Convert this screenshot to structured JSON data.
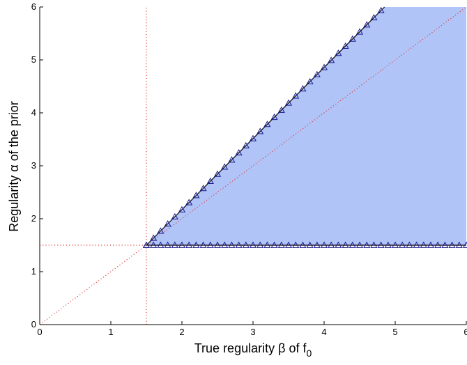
{
  "chart_data": {
    "type": "area",
    "title": "",
    "xlabel": {
      "before_sub": "True regularity β of f",
      "subscript": "0"
    },
    "ylabel": "Regularity α of the prior",
    "xlim": [
      0,
      6
    ],
    "ylim": [
      0,
      6
    ],
    "xticks": [
      "0",
      "1",
      "2",
      "3",
      "4",
      "5",
      "6"
    ],
    "yticks": [
      "0",
      "1",
      "2",
      "3",
      "4",
      "5",
      "6"
    ],
    "grid": false,
    "region": {
      "fill_color": "#b0c4f8",
      "lower_boundary": {
        "x": [
          1.5,
          6
        ],
        "y": [
          1.5,
          1.5
        ]
      },
      "upper_boundary": {
        "x": [
          1.5,
          4.85
        ],
        "y": [
          1.5,
          6
        ]
      }
    },
    "reference_lines": [
      {
        "kind": "diagonal",
        "x": [
          0,
          6
        ],
        "y": [
          0,
          6
        ],
        "style": "dotted",
        "color": "#e04040"
      },
      {
        "kind": "vertical",
        "x": 1.5,
        "style": "dotted",
        "color": "#e04040"
      },
      {
        "kind": "horizontal",
        "y": 1.5,
        "style": "dotted",
        "color": "#e04040"
      }
    ],
    "markers": {
      "shape": "triangle",
      "color": "#1a1a8c",
      "upper_boundary_x": [
        1.5,
        1.6,
        1.7,
        1.8,
        1.9,
        2.0,
        2.1,
        2.2,
        2.3,
        2.4,
        2.5,
        2.6,
        2.7,
        2.8,
        2.9,
        3.0,
        3.1,
        3.2,
        3.3,
        3.4,
        3.5,
        3.6,
        3.7,
        3.8,
        3.9,
        4.0,
        4.1,
        4.2,
        4.3,
        4.4,
        4.5,
        4.6,
        4.7,
        4.8
      ],
      "lower_boundary_x": [
        1.5,
        1.6,
        1.7,
        1.8,
        1.9,
        2.0,
        2.1,
        2.2,
        2.3,
        2.4,
        2.5,
        2.6,
        2.7,
        2.8,
        2.9,
        3.0,
        3.1,
        3.2,
        3.3,
        3.4,
        3.5,
        3.6,
        3.7,
        3.8,
        3.9,
        4.0,
        4.1,
        4.2,
        4.3,
        4.4,
        4.5,
        4.6,
        4.7,
        4.8,
        4.9,
        5.0,
        5.1,
        5.2,
        5.3,
        5.4,
        5.5,
        5.6,
        5.7,
        5.8,
        5.9,
        6.0
      ]
    }
  }
}
